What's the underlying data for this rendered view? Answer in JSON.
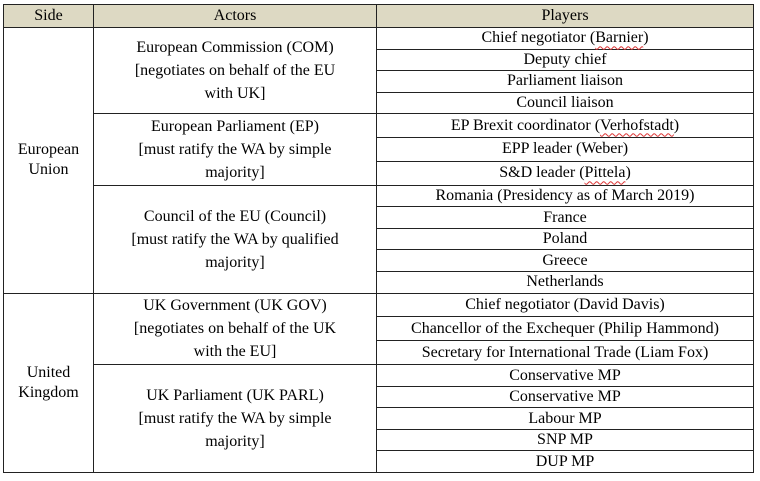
{
  "headers": {
    "side": "Side",
    "actors": "Actors",
    "players": "Players"
  },
  "sides": [
    {
      "label": [
        "European",
        "Union"
      ],
      "actors": [
        {
          "lines": [
            "European Commission (COM)",
            "[negotiates on behalf of the EU",
            "with UK]"
          ],
          "players": [
            {
              "pre": "Chief negotiator (",
              "name": "Barnier",
              "post": ")"
            },
            {
              "pre": "Deputy chief",
              "name": "",
              "post": ""
            },
            {
              "pre": "Parliament liaison",
              "name": "",
              "post": ""
            },
            {
              "pre": "Council liaison",
              "name": "",
              "post": ""
            }
          ]
        },
        {
          "lines": [
            "European Parliament (EP)",
            "[must ratify the WA by simple",
            "majority]"
          ],
          "players": [
            {
              "pre": "EP Brexit coordinator (",
              "name": "Verhofstadt",
              "post": ")"
            },
            {
              "pre": "EPP leader (Weber)",
              "name": "",
              "post": ""
            },
            {
              "pre": "S&D leader (",
              "name": "Pittela",
              "post": ")"
            }
          ]
        },
        {
          "lines": [
            "Council of the EU (Council)",
            "[must ratify the WA by qualified",
            "majority]"
          ],
          "players": [
            {
              "pre": "Romania (Presidency as of March 2019)",
              "name": "",
              "post": ""
            },
            {
              "pre": "France",
              "name": "",
              "post": ""
            },
            {
              "pre": "Poland",
              "name": "",
              "post": ""
            },
            {
              "pre": "Greece",
              "name": "",
              "post": ""
            },
            {
              "pre": "Netherlands",
              "name": "",
              "post": ""
            }
          ]
        }
      ]
    },
    {
      "label": [
        "United",
        "Kingdom"
      ],
      "actors": [
        {
          "lines": [
            "UK Government (UK GOV)",
            "[negotiates on behalf of the UK",
            "with the EU]"
          ],
          "players": [
            {
              "pre": "Chief negotiator (David Davis)",
              "name": "",
              "post": ""
            },
            {
              "pre": "Chancellor of the Exchequer (Philip Hammond)",
              "name": "",
              "post": ""
            },
            {
              "pre": "Secretary for International Trade (Liam Fox)",
              "name": "",
              "post": ""
            }
          ]
        },
        {
          "lines": [
            "UK Parliament (UK PARL)",
            "[must ratify the WA by simple",
            "majority]"
          ],
          "players": [
            {
              "pre": "Conservative MP",
              "name": "",
              "post": ""
            },
            {
              "pre": "Conservative MP",
              "name": "",
              "post": ""
            },
            {
              "pre": "Labour MP",
              "name": "",
              "post": ""
            },
            {
              "pre": "SNP MP",
              "name": "",
              "post": ""
            },
            {
              "pre": "DUP MP",
              "name": "",
              "post": ""
            }
          ]
        }
      ]
    }
  ]
}
